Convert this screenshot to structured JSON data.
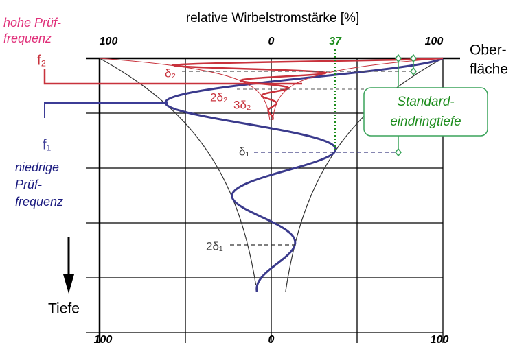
{
  "title": "relative Wirbelstromstärke [%]",
  "top_axis": {
    "left": "100",
    "middle": "0",
    "percent": "37",
    "right": "100"
  },
  "bottom_axis": {
    "left": "100",
    "middle": "0",
    "right": "100"
  },
  "high_frequency": {
    "line1": "hohe Prüf-",
    "line2": "frequenz",
    "symbol": "f₂"
  },
  "low_frequency": {
    "symbol": "f₁",
    "line1": "niedrige",
    "line2": "Prüf-",
    "line3": "frequenz"
  },
  "surface": {
    "line1": "Ober-",
    "line2": "fläche"
  },
  "depth": "Tiefe",
  "standard_depth": {
    "line1": "Standard-",
    "line2": "eindringtiefe"
  },
  "markers": {
    "delta1": "δ₁",
    "two_delta1": "2δ₁",
    "delta2": "δ₂",
    "two_delta2": "2δ₂",
    "three_delta2": "3δ₂"
  }
}
